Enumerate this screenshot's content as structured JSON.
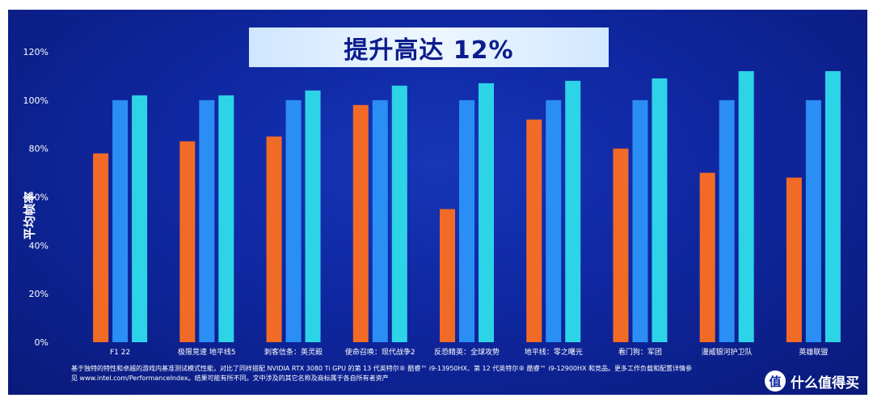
{
  "chart_data": {
    "type": "bar",
    "title": "提升高达 12%",
    "ylabel": "平均帧率",
    "ylim": [
      0,
      120
    ],
    "yticks": [
      "0%",
      "20%",
      "40%",
      "60%",
      "80%",
      "100%",
      "120%"
    ],
    "grid": false,
    "categories": [
      "F1 22",
      "极限竞速 地平线5",
      "刺客信条：英灵殿",
      "使命召唤：现代战争2",
      "反恐精英：全球攻势",
      "地平线：零之曙光",
      "看门狗：军团",
      "漫威银河护卫队",
      "英雄联盟"
    ],
    "series": [
      {
        "color": "#f26b26",
        "values": [
          78,
          83,
          85,
          98,
          55,
          92,
          80,
          70,
          68
        ]
      },
      {
        "color": "#2b8ef5",
        "values": [
          100,
          100,
          100,
          100,
          100,
          100,
          100,
          100,
          100
        ]
      },
      {
        "color": "#2dd3e6",
        "values": [
          102,
          102,
          104,
          106,
          107,
          108,
          109,
          112,
          112
        ]
      }
    ]
  },
  "footnote": {
    "line1": "基于独特的特性和卓越的游戏内基准测试模式性能，对比了同样搭配 NVIDIA RTX 3080 Ti GPU 的第 13 代英特尔® 酷睿™ i9-13950HX、第 12 代英特尔® 酷睿™ i9-12900HX 和竞品。更多工作负载和配置详情参",
    "line2": "见 www.intel.com/PerformanceIndex。结果可能有所不同。文中涉及的其它名称及商标属于各自所有者资产"
  },
  "watermark": {
    "logo_text": "值",
    "text": "什么值得买"
  }
}
